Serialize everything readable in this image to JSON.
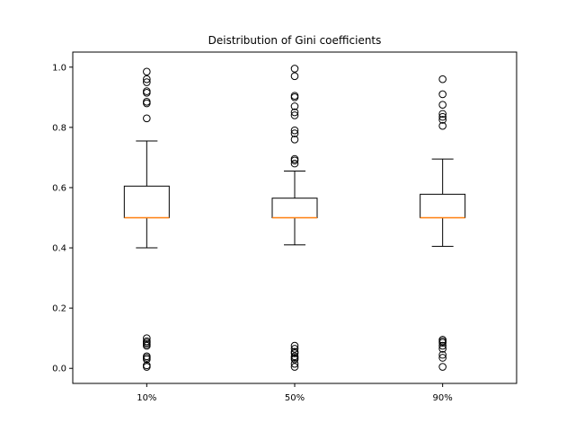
{
  "chart_data": {
    "type": "box",
    "title": "Deistribution of Gini coefficients",
    "xlabel": "",
    "ylabel": "",
    "ylim": [
      -0.05,
      1.05
    ],
    "yticks": [
      0.0,
      0.2,
      0.4,
      0.6,
      0.8,
      1.0
    ],
    "ytick_labels": [
      "0.0",
      "0.2",
      "0.4",
      "0.6",
      "0.8",
      "1.0"
    ],
    "categories": [
      "10%",
      "50%",
      "90%"
    ],
    "boxes": [
      {
        "label": "10%",
        "whisker_low": 0.4,
        "q1": 0.5,
        "median": 0.5,
        "q3": 0.605,
        "whisker_high": 0.755,
        "outliers": [
          0.985,
          0.96,
          0.95,
          0.92,
          0.915,
          0.885,
          0.88,
          0.83,
          0.1,
          0.09,
          0.085,
          0.08,
          0.075,
          0.04,
          0.035,
          0.03,
          0.01,
          0.005
        ]
      },
      {
        "label": "50%",
        "whisker_low": 0.41,
        "q1": 0.5,
        "median": 0.5,
        "q3": 0.565,
        "whisker_high": 0.655,
        "outliers": [
          0.995,
          0.97,
          0.905,
          0.9,
          0.87,
          0.85,
          0.84,
          0.79,
          0.78,
          0.76,
          0.695,
          0.69,
          0.68,
          0.075,
          0.065,
          0.055,
          0.05,
          0.04,
          0.035,
          0.03,
          0.015,
          0.005
        ]
      },
      {
        "label": "90%",
        "whisker_low": 0.405,
        "q1": 0.5,
        "median": 0.5,
        "q3": 0.578,
        "whisker_high": 0.695,
        "outliers": [
          0.96,
          0.91,
          0.875,
          0.845,
          0.835,
          0.825,
          0.805,
          0.095,
          0.09,
          0.085,
          0.075,
          0.065,
          0.045,
          0.035,
          0.005
        ]
      }
    ],
    "colors": {
      "box": "#000000",
      "median": "#ff7f0e",
      "outlier": "#000000"
    }
  }
}
